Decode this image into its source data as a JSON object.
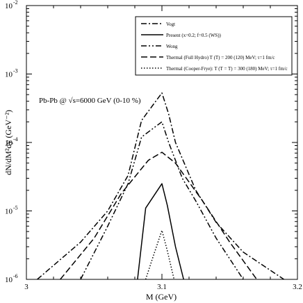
{
  "chart_data": {
    "type": "line",
    "annotation": "Pb-Pb @ √s=6000 GeV (0-10 %)",
    "xlabel": "M (GeV)",
    "ylabel": "dN/dM²dy (GeV⁻²)",
    "xlim": [
      3.0,
      3.2
    ],
    "ylim": [
      1e-06,
      0.01
    ],
    "y_scale": "log",
    "grid": false,
    "legend_placement": "top-right",
    "x_ticks": [
      {
        "value": 3.0,
        "label": "3"
      },
      {
        "value": 3.1,
        "label": "3.1"
      },
      {
        "value": 3.2,
        "label": "3.2"
      }
    ],
    "y_ticks": [
      {
        "value": 1e-06,
        "base": "10",
        "exp": "-6"
      },
      {
        "value": 1e-05,
        "base": "10",
        "exp": "-5"
      },
      {
        "value": 0.0001,
        "base": "10",
        "exp": "-4"
      },
      {
        "value": 0.001,
        "base": "10",
        "exp": "-3"
      },
      {
        "value": 0.01,
        "base": "10",
        "exp": "-2"
      }
    ],
    "series": [
      {
        "name": "Vogt",
        "style": "dash-dot",
        "x": [
          3.008,
          3.04,
          3.06,
          3.075,
          3.085,
          3.1,
          3.105,
          3.11,
          3.125,
          3.14,
          3.16,
          3.19
        ],
        "y": [
          1e-06,
          3.5e-06,
          1e-05,
          3.3e-05,
          0.00021,
          0.00053,
          0.00026,
          0.0001,
          2e-05,
          6.8e-06,
          2.5e-06,
          1e-06
        ]
      },
      {
        "name": "Present (x=0.2; f=0.5 (WS))",
        "style": "solid",
        "x": [
          3.082,
          3.088,
          3.1,
          3.104,
          3.11,
          3.116
        ],
        "y": [
          1e-06,
          1.1e-05,
          2.5e-05,
          1.2e-05,
          3e-06,
          1e-06
        ]
      },
      {
        "name": "Wong",
        "style": "dash-dot-dot",
        "x": [
          3.04,
          3.06,
          3.075,
          3.085,
          3.1,
          3.105,
          3.115,
          3.125,
          3.14,
          3.16
        ],
        "y": [
          1e-06,
          6e-06,
          2.5e-05,
          0.00012,
          0.0002,
          0.0001,
          3e-05,
          1.4e-05,
          4e-06,
          1e-06
        ]
      },
      {
        "name": "Thermal (Full Hydro) T (T) = 200 (120) MeV; τ=1 fm/c",
        "style": "dashed",
        "x": [
          3.025,
          3.05,
          3.07,
          3.09,
          3.1,
          3.11,
          3.13,
          3.15,
          3.17
        ],
        "y": [
          1e-06,
          4e-06,
          1.8e-05,
          5.5e-05,
          7.2e-05,
          5e-05,
          1.4e-05,
          3.5e-06,
          1e-06
        ]
      },
      {
        "name": "Thermal (Cooper-Frye): T (T = T) = 300 (180) MeV; τ=1 fm/c",
        "style": "dotted",
        "x": [
          3.088,
          3.093,
          3.1,
          3.104,
          3.109
        ],
        "y": [
          1e-06,
          2e-06,
          5.2e-06,
          2.6e-06,
          1e-06
        ]
      }
    ]
  }
}
